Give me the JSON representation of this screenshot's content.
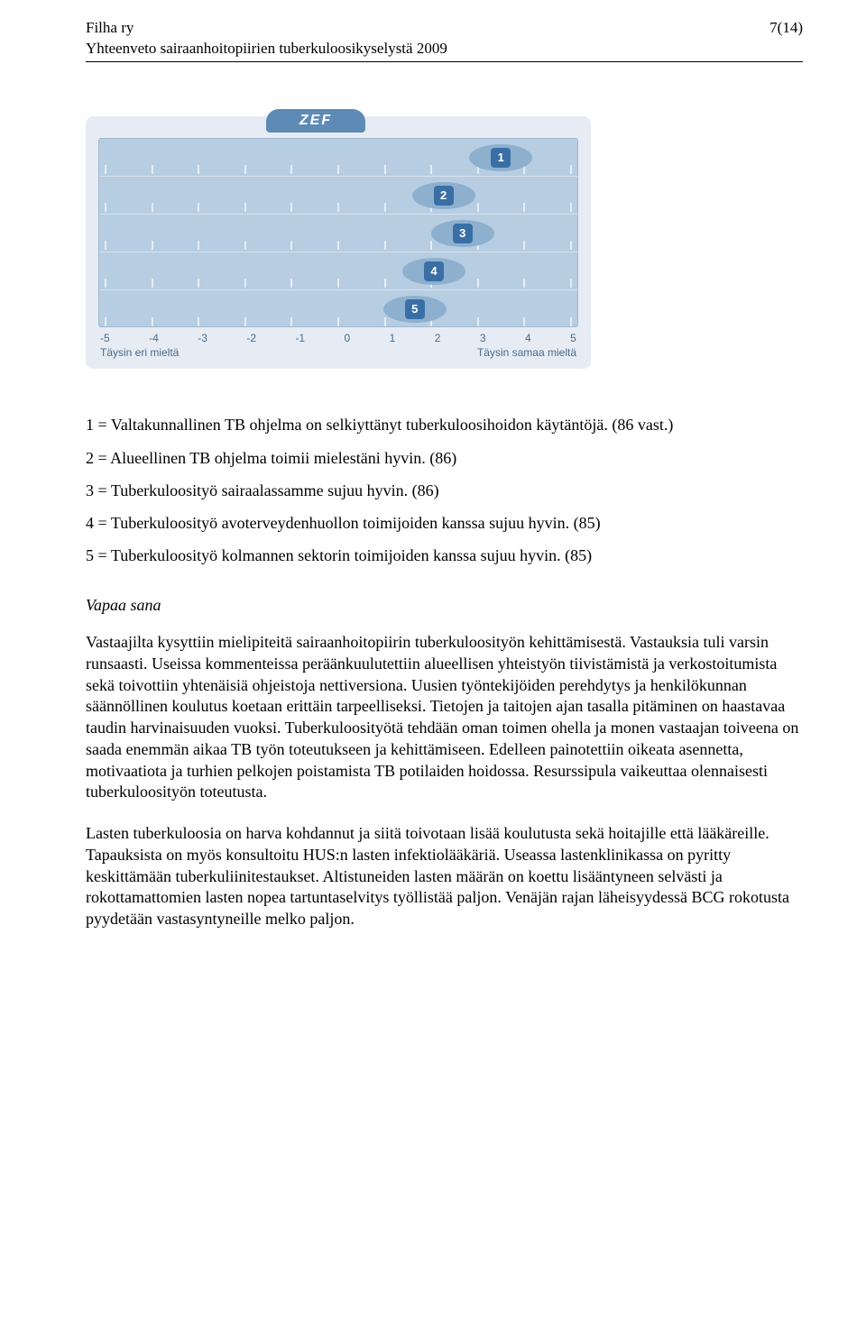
{
  "header": {
    "org": "Filha ry",
    "subtitle": "Yhteenveto sairaanhoitopiirien tuberkuloosikyselystä 2009",
    "page": "7(14)"
  },
  "chart": {
    "brand": "ZEF",
    "min": -5,
    "max": 5,
    "axis_ticks": [
      "-5",
      "-4",
      "-3",
      "-2",
      "-1",
      "0",
      "1",
      "2",
      "3",
      "4",
      "5"
    ],
    "left_label": "Täysin eri mieltä",
    "right_label": "Täysin samaa mieltä",
    "bg_color": "#e7ecf4",
    "bar_bg": "#b7cde1",
    "ellipse_color": "#8db0cf",
    "badge_color": "#3a6fa6",
    "rows": [
      {
        "num": "1",
        "value": 3.4
      },
      {
        "num": "2",
        "value": 2.2
      },
      {
        "num": "3",
        "value": 2.6
      },
      {
        "num": "4",
        "value": 2.0
      },
      {
        "num": "5",
        "value": 1.6
      }
    ]
  },
  "legend": {
    "l1": "1 = Valtakunnallinen TB ohjelma on selkiyttänyt tuberkuloosihoidon käytäntöjä. (86 vast.)",
    "l2": "2 = Alueellinen TB ohjelma toimii mielestäni hyvin. (86)",
    "l3": "3 = Tuberkuloosityö sairaalassamme sujuu hyvin. (86)",
    "l4": "4 = Tuberkuloosityö avoterveydenhuollon toimijoiden kanssa sujuu hyvin. (85)",
    "l5": "5 = Tuberkuloosityö kolmannen sektorin toimijoiden kanssa sujuu hyvin. (85)"
  },
  "section": {
    "title": "Vapaa sana"
  },
  "para1": "Vastaajilta kysyttiin mielipiteitä sairaanhoitopiirin tuberkuloosityön kehittämisestä. Vastauksia tuli varsin runsaasti. Useissa kommenteissa peräänkuulutettiin alueellisen yhteistyön tiivistämistä ja verkostoitumista sekä toivottiin yhtenäisiä ohjeistoja nettiversiona. Uusien työntekijöiden perehdytys ja henkilökunnan säännöllinen koulutus koetaan erittäin tarpeelliseksi. Tietojen ja taitojen ajan tasalla pitäminen on haastavaa taudin harvinaisuuden vuoksi. Tuberkuloosityötä tehdään oman toimen ohella ja monen vastaajan toiveena on saada enemmän aikaa TB työn toteutukseen ja kehittämiseen. Edelleen painotettiin oikeata asennetta, motivaatiota ja turhien pelkojen poistamista TB potilaiden hoidossa. Resurssipula vaikeuttaa olennaisesti tuberkuloosityön toteutusta.",
  "para2": "Lasten tuberkuloosia on harva kohdannut ja siitä toivotaan lisää koulutusta sekä hoitajille että lääkäreille. Tapauksista on myös konsultoitu HUS:n lasten infektiolääkäriä. Useassa lastenklinikassa on pyritty keskittämään tuberkuliinitestaukset. Altistuneiden lasten määrän on koettu lisääntyneen selvästi ja rokottamattomien lasten nopea tartuntaselvitys työllistää paljon. Venäjän rajan läheisyydessä BCG rokotusta pyydetään vastasyntyneille melko paljon."
}
